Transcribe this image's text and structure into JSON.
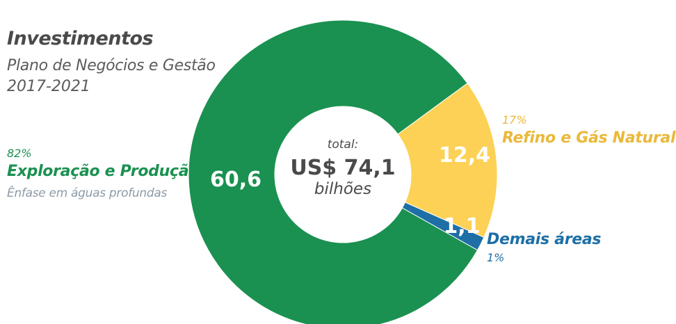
{
  "header": {
    "title": "Investimentos",
    "subtitle_line1": "Plano de Negócios e Gestão",
    "subtitle_line2": "2017-2021"
  },
  "center": {
    "label": "total:",
    "value": "US$ 74,1",
    "unit": "bilhões"
  },
  "colors": {
    "exploracao": "#1a9150",
    "refino": "#fdd155",
    "demais": "#1d6fa5",
    "text_dark": "#4a4a4a"
  },
  "chart_data": {
    "type": "pie",
    "title": "Investimentos",
    "subtitle": "Plano de Negócios e Gestão 2017-2021",
    "total": 74.1,
    "total_text": "US$ 74,1",
    "unit": "bilhões",
    "slices": [
      {
        "key": "exploracao",
        "name": "Exploração e Produção",
        "value": 60.6,
        "value_text": "60,6",
        "percent": 82,
        "percent_text": "82%",
        "note": "Ênfase em águas profundas",
        "color": "#1a9150"
      },
      {
        "key": "refino",
        "name": "Refino e Gás Natural",
        "value": 12.4,
        "value_text": "12,4",
        "percent": 17,
        "percent_text": "17%",
        "color": "#fdd155"
      },
      {
        "key": "demais",
        "name": "Demais áreas",
        "value": 1.1,
        "value_text": "1,1",
        "percent": 1,
        "percent_text": "1%",
        "color": "#1d6fa5"
      }
    ]
  }
}
